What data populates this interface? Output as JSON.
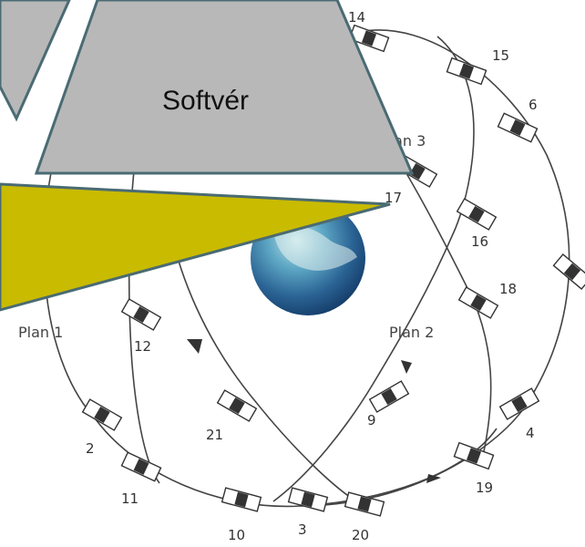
{
  "overlay": {
    "software_label": "Softvér"
  },
  "orbit_planes": [
    "Plan 1",
    "Plan 2",
    "Plan 3"
  ],
  "satellites": [
    "14",
    "15",
    "6",
    "17",
    "16",
    "18",
    "12",
    "21",
    "9",
    "4",
    "2",
    "19",
    "11",
    "10",
    "3",
    "20"
  ],
  "colors": {
    "gray_shape": "#b8b8b8",
    "gray_outline": "#4a6b73",
    "olive_shape": "#c9bb00",
    "orbit_line": "#444444",
    "earth": "#2e6fa3"
  }
}
